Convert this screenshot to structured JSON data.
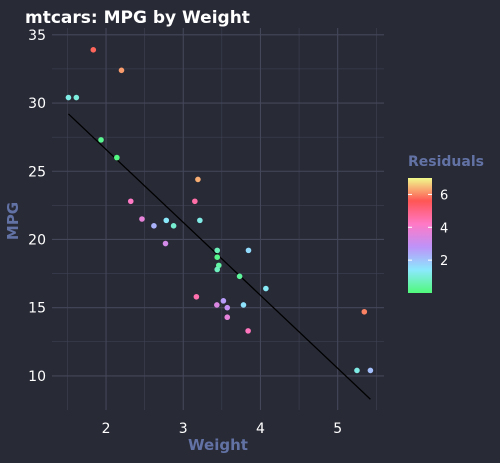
{
  "chart_data": {
    "type": "scatter",
    "title": "mtcars: MPG by Weight",
    "xlabel": "Weight",
    "ylabel": "MPG",
    "xlim": [
      1.3,
      5.6
    ],
    "ylim": [
      7.5,
      35.5
    ],
    "xticks": [
      2,
      3,
      4,
      5
    ],
    "yticks": [
      10,
      15,
      20,
      25,
      30,
      35
    ],
    "grid": true,
    "regression_line": {
      "x": [
        1.513,
        5.424
      ],
      "y": [
        29.2,
        8.29
      ]
    },
    "legend": {
      "title": "Residuals",
      "position": "right",
      "range": [
        0,
        7
      ],
      "ticks": [
        2,
        4,
        6
      ]
    },
    "points": [
      {
        "x": 2.62,
        "y": 21.0,
        "residual": 2.28
      },
      {
        "x": 2.875,
        "y": 21.0,
        "residual": 0.92
      },
      {
        "x": 2.32,
        "y": 22.8,
        "residual": 4.21
      },
      {
        "x": 3.215,
        "y": 21.4,
        "residual": 1.16
      },
      {
        "x": 3.44,
        "y": 18.7,
        "residual": 0.17
      },
      {
        "x": 3.46,
        "y": 18.1,
        "residual": 0.43
      },
      {
        "x": 3.57,
        "y": 14.3,
        "residual": 3.65
      },
      {
        "x": 3.19,
        "y": 24.4,
        "residual": 6.35
      },
      {
        "x": 3.15,
        "y": 22.8,
        "residual": 4.58
      },
      {
        "x": 3.44,
        "y": 19.2,
        "residual": 0.67
      },
      {
        "x": 3.44,
        "y": 17.8,
        "residual": 0.73
      },
      {
        "x": 4.07,
        "y": 16.4,
        "residual": 1.34
      },
      {
        "x": 3.73,
        "y": 17.3,
        "residual": 0.33
      },
      {
        "x": 3.78,
        "y": 15.2,
        "residual": 1.5
      },
      {
        "x": 5.25,
        "y": 10.4,
        "residual": 1.15
      },
      {
        "x": 5.424,
        "y": 10.4,
        "residual": 2.08
      },
      {
        "x": 5.345,
        "y": 14.7,
        "residual": 5.99
      },
      {
        "x": 2.2,
        "y": 32.4,
        "residual": 6.2
      },
      {
        "x": 1.615,
        "y": 30.4,
        "residual": 1.06
      },
      {
        "x": 1.835,
        "y": 33.9,
        "residual": 5.74
      },
      {
        "x": 2.465,
        "y": 21.5,
        "residual": 3.67
      },
      {
        "x": 3.52,
        "y": 15.5,
        "residual": 2.65
      },
      {
        "x": 3.435,
        "y": 15.2,
        "residual": 3.42
      },
      {
        "x": 3.84,
        "y": 13.3,
        "residual": 4.3
      },
      {
        "x": 3.845,
        "y": 19.2,
        "residual": 1.63
      },
      {
        "x": 1.935,
        "y": 27.3,
        "residual": 0.23
      },
      {
        "x": 2.14,
        "y": 26.0,
        "residual": 0.08
      },
      {
        "x": 1.513,
        "y": 30.4,
        "residual": 1.15
      },
      {
        "x": 3.17,
        "y": 15.8,
        "residual": 4.5
      },
      {
        "x": 2.77,
        "y": 19.7,
        "residual": 3.26
      },
      {
        "x": 3.57,
        "y": 15.0,
        "residual": 2.95
      },
      {
        "x": 2.78,
        "y": 21.4,
        "residual": 1.37
      }
    ]
  },
  "colors": {
    "background": "#282a36",
    "grid": "#44475a",
    "axis_title": "#6272a4",
    "regression_line": "#000000",
    "gradient": [
      "#50fa7b",
      "#8be9fd",
      "#bd93f9",
      "#ff79c6",
      "#ff5555",
      "#f1fa8c"
    ]
  }
}
